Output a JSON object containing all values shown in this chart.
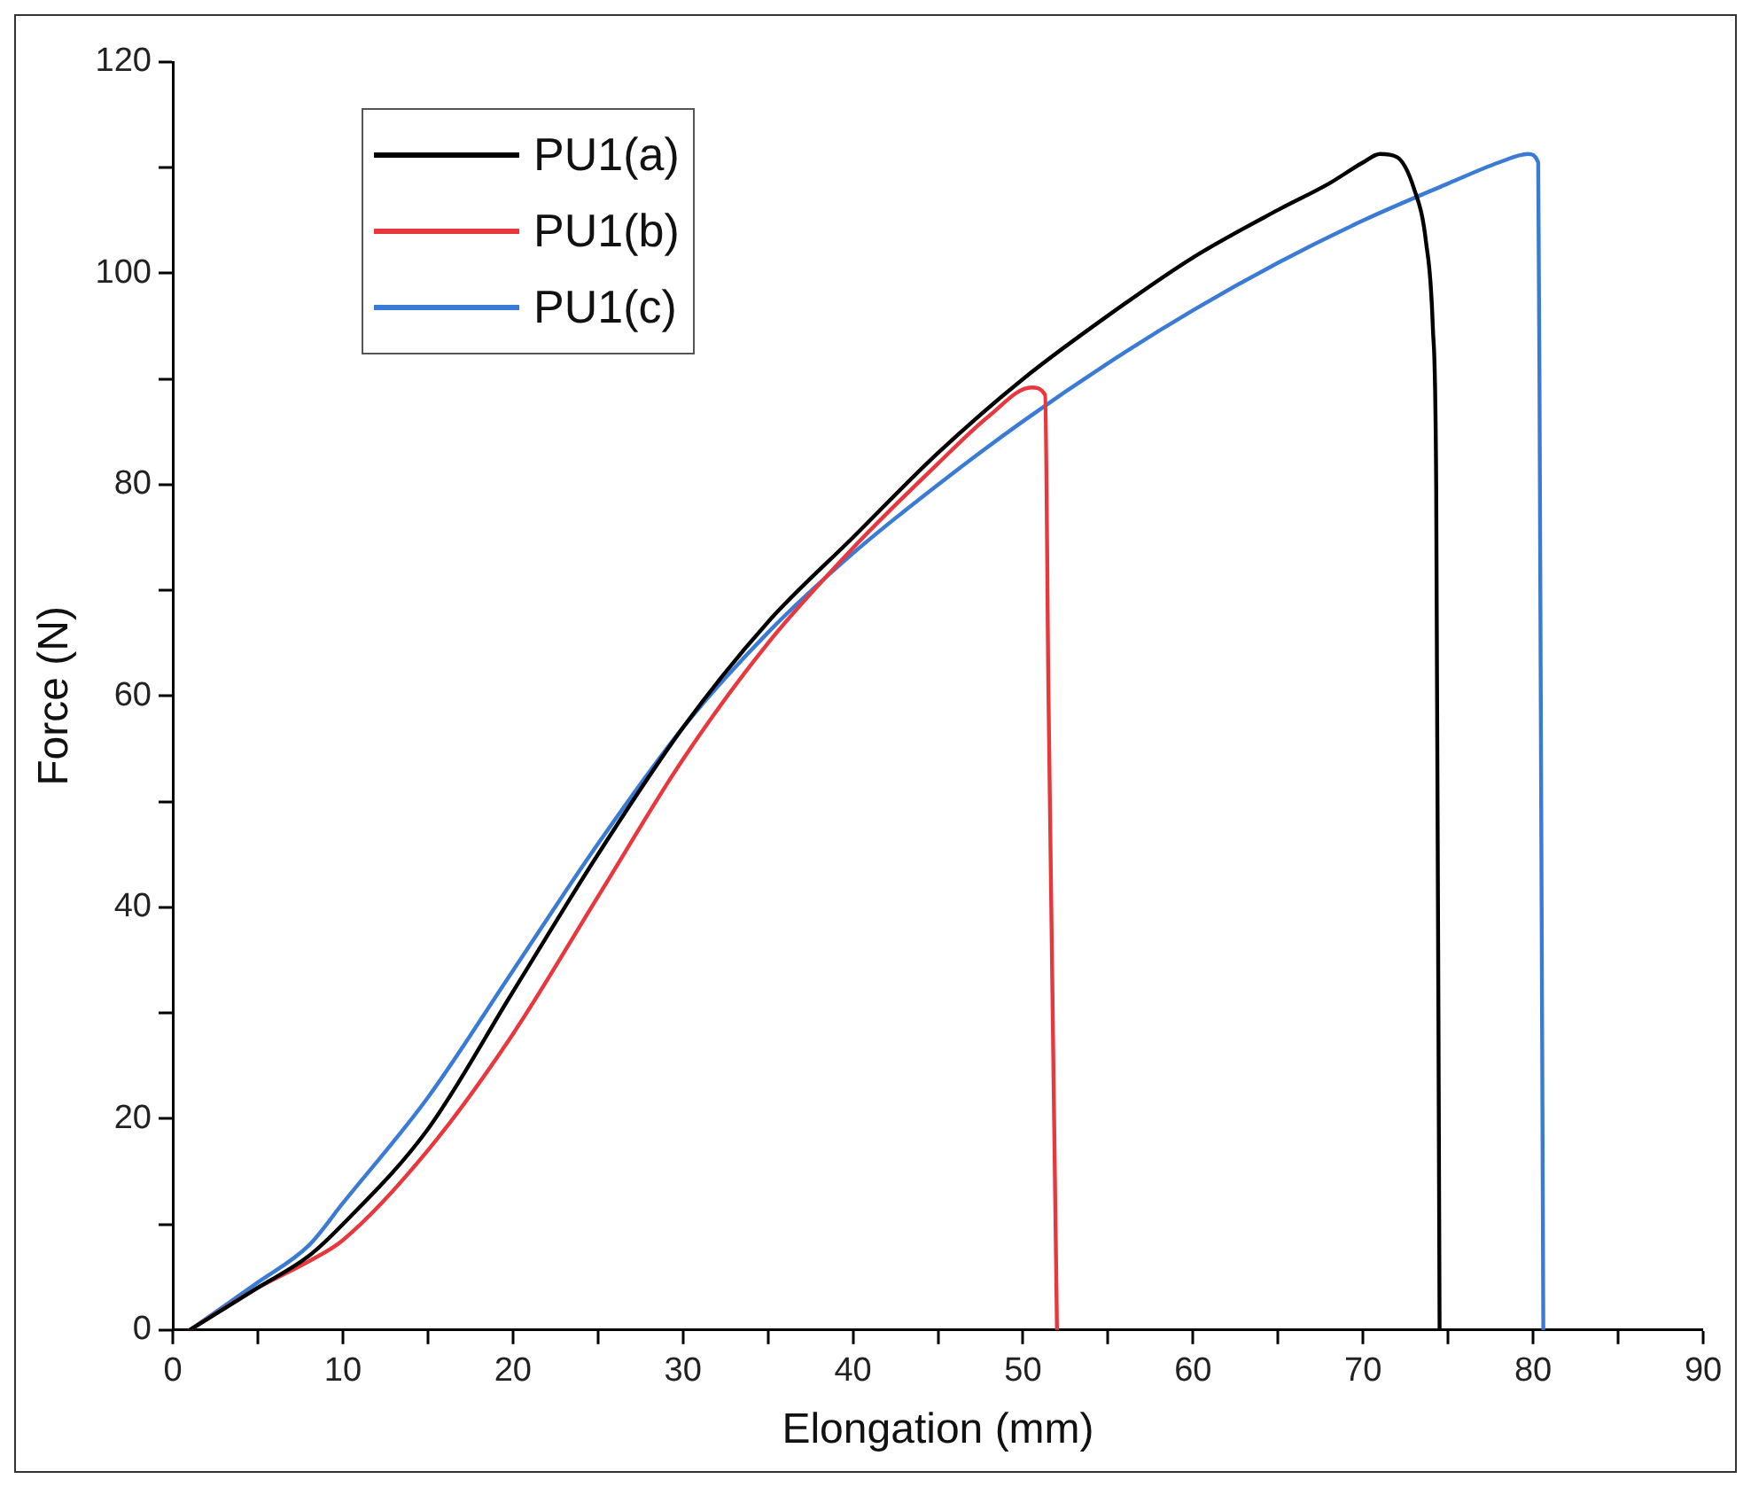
{
  "chart_data": {
    "type": "line",
    "xlabel": "Elongation (mm)",
    "ylabel": "Force (N)",
    "xlim": [
      0,
      90
    ],
    "ylim": [
      0,
      120
    ],
    "xticks": [
      0,
      {
        "value": 5,
        "label": null
      },
      10,
      {
        "value": 15,
        "label": null
      },
      20,
      {
        "value": 25,
        "label": null
      },
      30,
      {
        "value": 35,
        "label": null
      },
      40,
      {
        "value": 45,
        "label": null
      },
      50,
      {
        "value": 55,
        "label": null
      },
      60,
      {
        "value": 65,
        "label": null
      },
      70,
      {
        "value": 75,
        "label": null
      },
      80,
      {
        "value": 85,
        "label": null
      },
      90
    ],
    "yticks": [
      0,
      {
        "value": 10,
        "label": null
      },
      20,
      {
        "value": 30,
        "label": null
      },
      40,
      {
        "value": 50,
        "label": null
      },
      60,
      {
        "value": 70,
        "label": null
      },
      80,
      {
        "value": 90,
        "label": null
      },
      100,
      {
        "value": 110,
        "label": null
      },
      120
    ],
    "legend": "top left",
    "marker": "none",
    "line_style": "solid",
    "series": [
      {
        "name": "PU1(a)",
        "color": "#000000",
        "x": [
          1,
          5,
          8,
          10,
          15,
          20,
          25,
          30,
          35,
          40,
          45,
          50,
          55,
          60,
          65,
          68,
          70,
          71,
          72,
          73,
          73.7,
          74.1,
          74.3,
          74.5
        ],
        "values": [
          0,
          4,
          7,
          10,
          19,
          32,
          45,
          57,
          67,
          75,
          83,
          90,
          96,
          101.5,
          106,
          108.5,
          110.5,
          111.3,
          111,
          108,
          103,
          95,
          80,
          0
        ]
      },
      {
        "name": "PU1(b)",
        "color": "#e8383d",
        "x": [
          1,
          5,
          8,
          10,
          15,
          20,
          25,
          30,
          35,
          40,
          45,
          48,
          50.5,
          51.3,
          51.5,
          52
        ],
        "values": [
          0,
          4,
          6.5,
          8.5,
          17,
          28,
          41,
          54,
          65,
          74,
          82,
          86.5,
          89.2,
          88.5,
          60,
          0
        ]
      },
      {
        "name": "PU1(c)",
        "color": "#3a7bd5",
        "x": [
          1,
          5,
          8,
          10,
          15,
          20,
          25,
          30,
          35,
          40,
          45,
          50,
          55,
          60,
          65,
          70,
          75,
          78,
          79.7,
          80.3,
          80.4,
          80.6
        ],
        "values": [
          0,
          4.5,
          8,
          12,
          22,
          34,
          46,
          57,
          66,
          73.5,
          80,
          86,
          91.5,
          96.5,
          101,
          105,
          108.5,
          110.5,
          111.3,
          110.5,
          80,
          0
        ]
      }
    ]
  }
}
